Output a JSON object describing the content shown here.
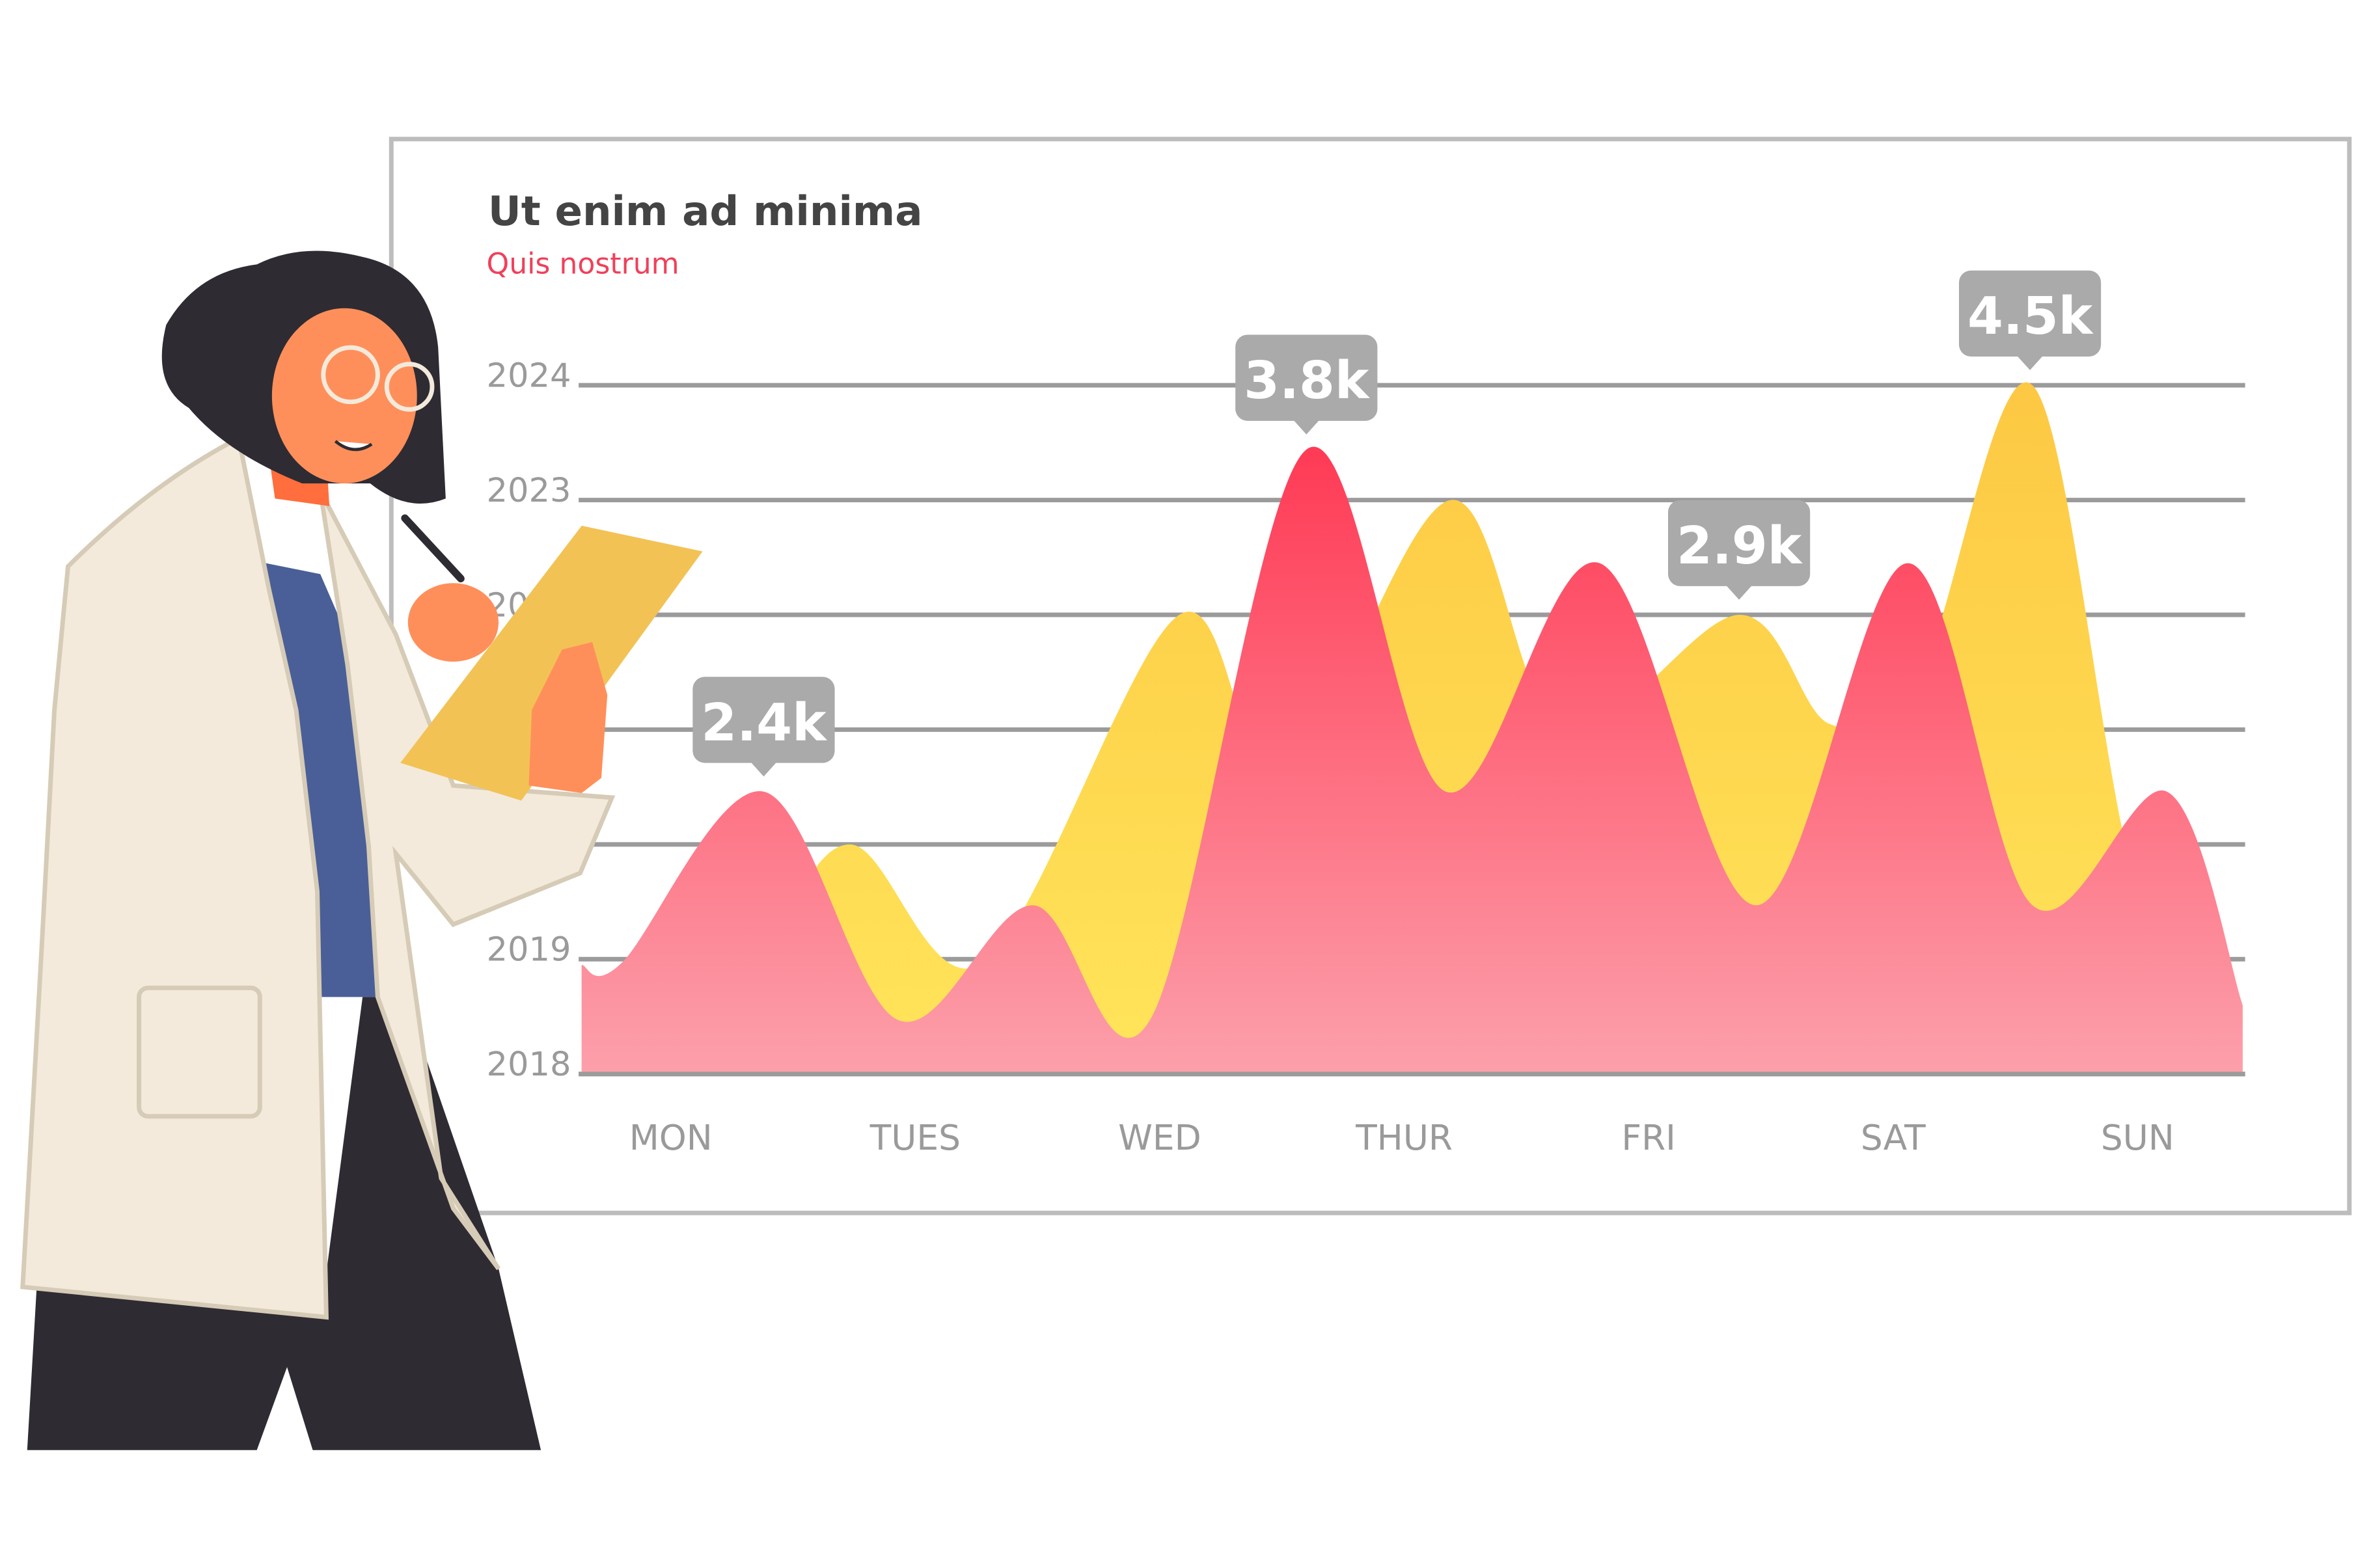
{
  "chart_data": {
    "type": "area",
    "title": "Ut enim ad minima",
    "subtitle": "Quis nostrum",
    "categories": [
      "MON",
      "TUES",
      "WED",
      "THUR",
      "FRI",
      "SAT",
      "SUN"
    ],
    "y_ticks": [
      {
        "value": 2024,
        "label": "2024"
      },
      {
        "value": 2023,
        "label": "2023"
      },
      {
        "value": 2022,
        "label": "2022"
      },
      {
        "value": 2019,
        "label": "2019"
      },
      {
        "value": 2018,
        "label": "2018"
      }
    ],
    "gridlines": [
      2018,
      2019,
      2020,
      2021,
      2022,
      2023,
      2024
    ],
    "ylim": [
      2018,
      2024
    ],
    "xlim": [
      -0.365,
      6.43
    ],
    "grid": true,
    "series": [
      {
        "name": "yellow",
        "color_top": "#fdc843",
        "color_bottom": "#ffe55a",
        "points": [
          [
            -0.365,
            2018.1
          ],
          [
            0.3,
            2018.9
          ],
          [
            0.73,
            2020.0
          ],
          [
            1.28,
            2018.97
          ],
          [
            2.08,
            2022.0
          ],
          [
            2.5,
            2020.6
          ],
          [
            3.19,
            2023.0
          ],
          [
            3.65,
            2021.0
          ],
          [
            4.37,
            2022.0
          ],
          [
            4.74,
            2021.05
          ],
          [
            5.1,
            2021.4
          ],
          [
            5.57,
            2024.0
          ],
          [
            6.0,
            2019.6
          ],
          [
            6.43,
            2018.6
          ]
        ]
      },
      {
        "name": "pink",
        "color_top": "#ff3a55",
        "color_bottom": "#fca0ab",
        "points": [
          [
            -0.365,
            2018.95
          ],
          [
            -0.2,
            2018.97
          ],
          [
            0.38,
            2020.46
          ],
          [
            0.93,
            2018.47
          ],
          [
            1.48,
            2019.47
          ],
          [
            1.96,
            2018.47
          ],
          [
            2.6,
            2023.44
          ],
          [
            3.17,
            2020.46
          ],
          [
            3.8,
            2022.45
          ],
          [
            4.44,
            2019.47
          ],
          [
            5.06,
            2022.45
          ],
          [
            5.57,
            2019.47
          ],
          [
            6.12,
            2020.46
          ],
          [
            6.43,
            2018.6
          ]
        ]
      }
    ],
    "annotations": [
      {
        "label": "2.4k",
        "x": 0.38,
        "y": 2020.46
      },
      {
        "label": "3.8k",
        "x": 2.6,
        "y": 2023.44
      },
      {
        "label": "2.9k",
        "x": 4.37,
        "y": 2022.0
      },
      {
        "label": "4.5k",
        "x": 5.56,
        "y": 2024.0
      }
    ],
    "tooltip_color": "#aaaaaa"
  }
}
